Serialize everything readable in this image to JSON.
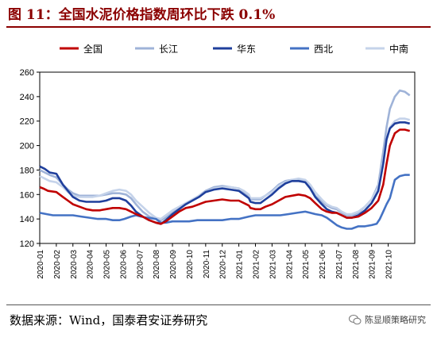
{
  "header": {
    "title": "图 11：全国水泥价格指数周环比下跌 0.1%"
  },
  "footer": {
    "source": "数据来源：Wind，国泰君安证券研究",
    "watermark": "陈显顺策略研究"
  },
  "chart_data": {
    "type": "line",
    "title": "",
    "xlabel": "",
    "ylabel": "",
    "ylim": [
      120,
      260
    ],
    "yticks": [
      120,
      140,
      160,
      180,
      200,
      220,
      240,
      260
    ],
    "grid": false,
    "legend_position": "top",
    "xticks": [
      "2020-01",
      "2020-02",
      "2020-03",
      "2020-04",
      "2020-05",
      "2020-06",
      "2020-07",
      "2020-08",
      "2020-09",
      "2020-10",
      "2020-11",
      "2020-12",
      "2021-01",
      "2021-02",
      "2021-03",
      "2021-04",
      "2021-05",
      "2021-06",
      "2021-07",
      "2021-08",
      "2021-09",
      "2021-10"
    ],
    "series": [
      {
        "name": "全国",
        "color": "#c00000",
        "width": 2,
        "points": [
          [
            0,
            166
          ],
          [
            0.2,
            165
          ],
          [
            0.5,
            163
          ],
          [
            1.0,
            162
          ],
          [
            1.4,
            158
          ],
          [
            1.7,
            155
          ],
          [
            2.0,
            152
          ],
          [
            2.4,
            150
          ],
          [
            2.8,
            148
          ],
          [
            3.2,
            147
          ],
          [
            3.6,
            147
          ],
          [
            4.0,
            148
          ],
          [
            4.4,
            149
          ],
          [
            4.8,
            149
          ],
          [
            5.2,
            148
          ],
          [
            5.5,
            146
          ],
          [
            5.8,
            144
          ],
          [
            6.2,
            142
          ],
          [
            6.6,
            139
          ],
          [
            7.0,
            137
          ],
          [
            7.3,
            136
          ],
          [
            7.6,
            138
          ],
          [
            8.0,
            142
          ],
          [
            8.4,
            146
          ],
          [
            8.8,
            149
          ],
          [
            9.2,
            150
          ],
          [
            9.6,
            152
          ],
          [
            10.0,
            154
          ],
          [
            10.5,
            155
          ],
          [
            11.0,
            156
          ],
          [
            11.5,
            155
          ],
          [
            12.0,
            155
          ],
          [
            12.3,
            153
          ],
          [
            12.6,
            151
          ],
          [
            12.7,
            149
          ],
          [
            13.0,
            148
          ],
          [
            13.3,
            148
          ],
          [
            13.6,
            150
          ],
          [
            14.0,
            152
          ],
          [
            14.4,
            155
          ],
          [
            14.8,
            158
          ],
          [
            15.2,
            159
          ],
          [
            15.6,
            160
          ],
          [
            16.0,
            159
          ],
          [
            16.3,
            157
          ],
          [
            16.6,
            153
          ],
          [
            17.0,
            148
          ],
          [
            17.3,
            146
          ],
          [
            17.6,
            145
          ],
          [
            17.9,
            145
          ],
          [
            18.2,
            143
          ],
          [
            18.5,
            141
          ],
          [
            18.8,
            141
          ],
          [
            19.2,
            142
          ],
          [
            19.6,
            145
          ],
          [
            20.0,
            149
          ],
          [
            20.4,
            155
          ],
          [
            20.7,
            168
          ],
          [
            20.9,
            185
          ],
          [
            21.1,
            200
          ],
          [
            21.4,
            210
          ],
          [
            21.7,
            213
          ],
          [
            22.0,
            213
          ],
          [
            22.3,
            212
          ]
        ]
      },
      {
        "name": "长江",
        "color": "#9fb3d8",
        "width": 2,
        "points": [
          [
            0,
            180
          ],
          [
            0.3,
            178
          ],
          [
            0.6,
            176
          ],
          [
            1.0,
            174
          ],
          [
            1.4,
            168
          ],
          [
            1.7,
            164
          ],
          [
            2.0,
            161
          ],
          [
            2.4,
            159
          ],
          [
            2.8,
            159
          ],
          [
            3.2,
            159
          ],
          [
            3.6,
            159
          ],
          [
            4.0,
            160
          ],
          [
            4.4,
            161
          ],
          [
            4.8,
            161
          ],
          [
            5.2,
            160
          ],
          [
            5.5,
            157
          ],
          [
            5.8,
            152
          ],
          [
            6.2,
            146
          ],
          [
            6.6,
            142
          ],
          [
            7.0,
            140
          ],
          [
            7.3,
            139
          ],
          [
            7.6,
            141
          ],
          [
            8.0,
            145
          ],
          [
            8.4,
            149
          ],
          [
            8.8,
            152
          ],
          [
            9.2,
            155
          ],
          [
            9.6,
            159
          ],
          [
            10.0,
            163
          ],
          [
            10.5,
            166
          ],
          [
            11.0,
            167
          ],
          [
            11.5,
            166
          ],
          [
            12.0,
            165
          ],
          [
            12.3,
            162
          ],
          [
            12.6,
            159
          ],
          [
            12.7,
            156
          ],
          [
            13.0,
            156
          ],
          [
            13.3,
            156
          ],
          [
            13.6,
            159
          ],
          [
            14.0,
            163
          ],
          [
            14.4,
            168
          ],
          [
            14.8,
            171
          ],
          [
            15.2,
            172
          ],
          [
            15.6,
            172
          ],
          [
            16.0,
            171
          ],
          [
            16.3,
            166
          ],
          [
            16.6,
            159
          ],
          [
            17.0,
            154
          ],
          [
            17.3,
            151
          ],
          [
            17.6,
            149
          ],
          [
            17.9,
            148
          ],
          [
            18.2,
            145
          ],
          [
            18.5,
            143
          ],
          [
            18.8,
            143
          ],
          [
            19.2,
            145
          ],
          [
            19.6,
            150
          ],
          [
            20.0,
            156
          ],
          [
            20.4,
            168
          ],
          [
            20.7,
            195
          ],
          [
            20.9,
            215
          ],
          [
            21.1,
            230
          ],
          [
            21.4,
            240
          ],
          [
            21.7,
            245
          ],
          [
            22.0,
            244
          ],
          [
            22.3,
            241
          ]
        ]
      },
      {
        "name": "华东",
        "color": "#1f3f9c",
        "width": 2,
        "points": [
          [
            0,
            183
          ],
          [
            0.3,
            181
          ],
          [
            0.6,
            178
          ],
          [
            1.0,
            177
          ],
          [
            1.4,
            168
          ],
          [
            1.7,
            163
          ],
          [
            2.0,
            158
          ],
          [
            2.4,
            155
          ],
          [
            2.8,
            154
          ],
          [
            3.2,
            154
          ],
          [
            3.6,
            154
          ],
          [
            4.0,
            155
          ],
          [
            4.4,
            157
          ],
          [
            4.8,
            157
          ],
          [
            5.2,
            155
          ],
          [
            5.5,
            151
          ],
          [
            5.8,
            146
          ],
          [
            6.2,
            142
          ],
          [
            6.6,
            139
          ],
          [
            7.0,
            137
          ],
          [
            7.3,
            136
          ],
          [
            7.6,
            139
          ],
          [
            8.0,
            144
          ],
          [
            8.4,
            148
          ],
          [
            8.8,
            152
          ],
          [
            9.2,
            155
          ],
          [
            9.6,
            158
          ],
          [
            10.0,
            162
          ],
          [
            10.5,
            164
          ],
          [
            11.0,
            165
          ],
          [
            11.5,
            164
          ],
          [
            12.0,
            163
          ],
          [
            12.3,
            160
          ],
          [
            12.6,
            157
          ],
          [
            12.7,
            154
          ],
          [
            13.0,
            153
          ],
          [
            13.3,
            153
          ],
          [
            13.6,
            156
          ],
          [
            14.0,
            160
          ],
          [
            14.4,
            165
          ],
          [
            14.8,
            169
          ],
          [
            15.2,
            171
          ],
          [
            15.6,
            171
          ],
          [
            16.0,
            170
          ],
          [
            16.3,
            165
          ],
          [
            16.6,
            158
          ],
          [
            17.0,
            152
          ],
          [
            17.3,
            148
          ],
          [
            17.6,
            146
          ],
          [
            17.9,
            145
          ],
          [
            18.2,
            143
          ],
          [
            18.5,
            141
          ],
          [
            18.8,
            141
          ],
          [
            19.2,
            143
          ],
          [
            19.6,
            147
          ],
          [
            20.0,
            153
          ],
          [
            20.4,
            163
          ],
          [
            20.7,
            185
          ],
          [
            20.9,
            205
          ],
          [
            21.1,
            214
          ],
          [
            21.4,
            218
          ],
          [
            21.7,
            219
          ],
          [
            22.0,
            219
          ],
          [
            22.3,
            218
          ]
        ]
      },
      {
        "name": "西北",
        "color": "#4472c4",
        "width": 2,
        "points": [
          [
            0,
            145
          ],
          [
            0.4,
            144
          ],
          [
            0.8,
            143
          ],
          [
            1.5,
            143
          ],
          [
            2.0,
            143
          ],
          [
            2.5,
            142
          ],
          [
            3.0,
            141
          ],
          [
            3.5,
            140
          ],
          [
            4.0,
            140
          ],
          [
            4.4,
            139
          ],
          [
            4.8,
            139
          ],
          [
            5.1,
            140
          ],
          [
            5.5,
            142
          ],
          [
            5.8,
            143
          ],
          [
            6.1,
            142
          ],
          [
            6.5,
            141
          ],
          [
            7.0,
            140
          ],
          [
            7.3,
            137
          ],
          [
            7.6,
            137
          ],
          [
            8.0,
            138
          ],
          [
            8.5,
            138
          ],
          [
            9.0,
            138
          ],
          [
            9.5,
            139
          ],
          [
            10.0,
            139
          ],
          [
            10.5,
            139
          ],
          [
            11.0,
            139
          ],
          [
            11.5,
            140
          ],
          [
            12.0,
            140
          ],
          [
            12.3,
            141
          ],
          [
            12.6,
            142
          ],
          [
            13.0,
            143
          ],
          [
            13.5,
            143
          ],
          [
            14.0,
            143
          ],
          [
            14.5,
            143
          ],
          [
            15.0,
            144
          ],
          [
            15.5,
            145
          ],
          [
            16.0,
            146
          ],
          [
            16.3,
            145
          ],
          [
            16.6,
            144
          ],
          [
            17.0,
            143
          ],
          [
            17.3,
            141
          ],
          [
            17.6,
            138
          ],
          [
            17.9,
            135
          ],
          [
            18.2,
            133
          ],
          [
            18.5,
            132
          ],
          [
            18.8,
            132
          ],
          [
            19.2,
            134
          ],
          [
            19.6,
            134
          ],
          [
            20.0,
            135
          ],
          [
            20.3,
            136
          ],
          [
            20.5,
            140
          ],
          [
            20.7,
            146
          ],
          [
            20.9,
            152
          ],
          [
            21.1,
            157
          ],
          [
            21.4,
            172
          ],
          [
            21.7,
            175
          ],
          [
            22.0,
            176
          ],
          [
            22.3,
            176
          ]
        ]
      },
      {
        "name": "中南",
        "color": "#c5d3ea",
        "width": 2,
        "points": [
          [
            0,
            175
          ],
          [
            0.3,
            173
          ],
          [
            0.6,
            171
          ],
          [
            1.0,
            170
          ],
          [
            1.4,
            166
          ],
          [
            1.7,
            162
          ],
          [
            2.0,
            159
          ],
          [
            2.4,
            158
          ],
          [
            2.8,
            158
          ],
          [
            3.2,
            158
          ],
          [
            3.6,
            159
          ],
          [
            4.0,
            161
          ],
          [
            4.4,
            163
          ],
          [
            4.8,
            164
          ],
          [
            5.2,
            163
          ],
          [
            5.5,
            160
          ],
          [
            5.8,
            155
          ],
          [
            6.2,
            150
          ],
          [
            6.6,
            145
          ],
          [
            7.0,
            141
          ],
          [
            7.3,
            140
          ],
          [
            7.6,
            143
          ],
          [
            8.0,
            147
          ],
          [
            8.4,
            150
          ],
          [
            8.8,
            153
          ],
          [
            9.2,
            156
          ],
          [
            9.6,
            159
          ],
          [
            10.0,
            162
          ],
          [
            10.5,
            165
          ],
          [
            11.0,
            166
          ],
          [
            11.5,
            166
          ],
          [
            12.0,
            165
          ],
          [
            12.3,
            163
          ],
          [
            12.6,
            160
          ],
          [
            12.7,
            157
          ],
          [
            13.0,
            157
          ],
          [
            13.3,
            157
          ],
          [
            13.6,
            159
          ],
          [
            14.0,
            162
          ],
          [
            14.4,
            167
          ],
          [
            14.8,
            170
          ],
          [
            15.2,
            172
          ],
          [
            15.6,
            173
          ],
          [
            16.0,
            172
          ],
          [
            16.3,
            168
          ],
          [
            16.6,
            162
          ],
          [
            17.0,
            156
          ],
          [
            17.3,
            152
          ],
          [
            17.6,
            150
          ],
          [
            17.9,
            149
          ],
          [
            18.2,
            146
          ],
          [
            18.5,
            144
          ],
          [
            18.8,
            144
          ],
          [
            19.2,
            146
          ],
          [
            19.6,
            150
          ],
          [
            20.0,
            156
          ],
          [
            20.4,
            166
          ],
          [
            20.7,
            188
          ],
          [
            20.9,
            205
          ],
          [
            21.1,
            215
          ],
          [
            21.4,
            220
          ],
          [
            21.7,
            222
          ],
          [
            22.0,
            222
          ],
          [
            22.3,
            221
          ]
        ]
      }
    ]
  }
}
